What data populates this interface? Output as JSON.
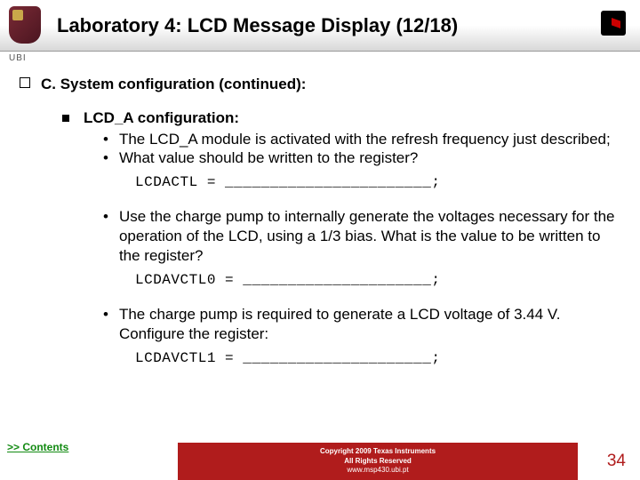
{
  "header": {
    "title": "Laboratory 4: LCD Message Display (12/18)",
    "ubi": "UBI"
  },
  "section": {
    "heading": "C. System configuration (continued):",
    "sub_title": "LCD_A configuration:",
    "bullets": {
      "b1": "The LCD_A module is activated with the refresh frequency just described;",
      "b2": "What value should be written to the register?",
      "b3": "Use the charge pump to internally generate the voltages necessary for the operation of the LCD, using a 1/3 bias. What is the value to be written to the register?",
      "b4": "The charge pump is required to generate a LCD voltage of 3.44 V. Configure the register:"
    },
    "code": {
      "c1": "LCDACTL = _______________________;",
      "c2": "LCDAVCTL0 = _____________________;",
      "c3": "LCDAVCTL1 = _____________________;"
    }
  },
  "footer": {
    "contents": ">> Contents",
    "copyright": "Copyright 2009 Texas Instruments",
    "rights": "All Rights Reserved",
    "site": "www.msp430.ubi.pt",
    "page": "34"
  },
  "colors": {
    "accent_red": "#b01c1c",
    "link_green": "#128a12"
  }
}
